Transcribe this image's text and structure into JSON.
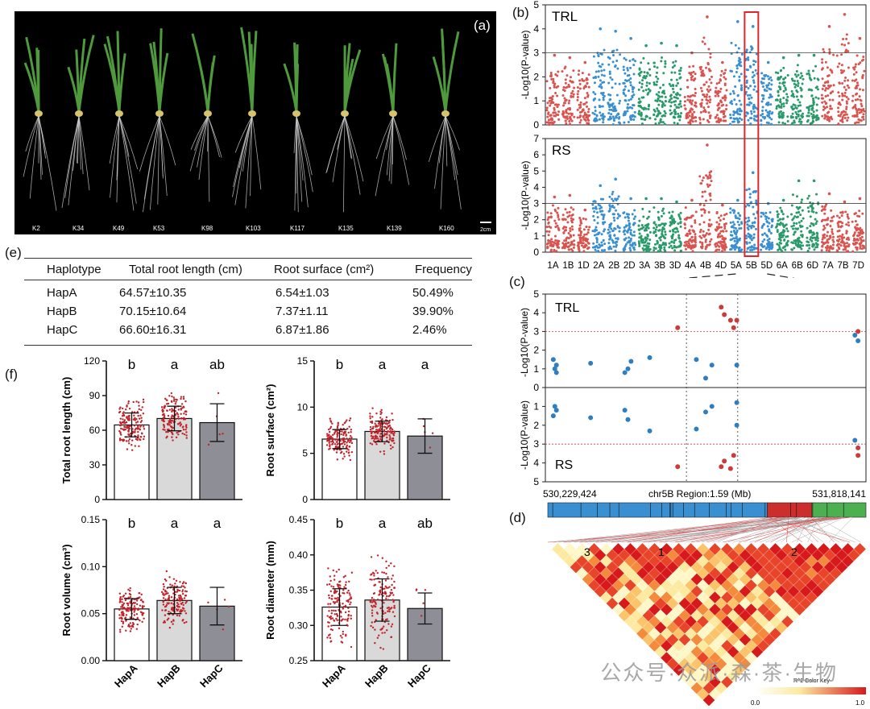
{
  "panels": {
    "a": "(a)",
    "b": "(b)",
    "c": "(c)",
    "d": "(d)",
    "e": "(e)",
    "f": "(f)"
  },
  "photo": {
    "labels": [
      "K2",
      "K34",
      "K49",
      "K53",
      "K98",
      "K103",
      "K117",
      "K135",
      "K139",
      "K160"
    ],
    "scale": "2cm"
  },
  "table": {
    "headers": [
      "Haplotype",
      "Total root length (cm)",
      "Root surface (cm²)",
      "Frequency"
    ],
    "rows": [
      [
        "HapA",
        "64.57±10.35",
        "6.54±1.03",
        "50.49%"
      ],
      [
        "HapB",
        "70.15±10.64",
        "7.37±1.11",
        "39.90%"
      ],
      [
        "HapC",
        "66.60±16.31",
        "6.87±1.86",
        "2.46%"
      ]
    ]
  },
  "watermark": "公众号·众派·森·茶·生物",
  "chart_data": [
    {
      "id": "manhattan",
      "type": "scatter",
      "subplots": [
        {
          "name": "TRL",
          "ylabel": "-Log10(P-value)",
          "ylim": [
            0,
            5
          ],
          "yticks": [
            0,
            1,
            2,
            3,
            4,
            5
          ],
          "threshold": 3.0
        },
        {
          "name": "RS",
          "ylabel": "-Log10(P-value)",
          "ylim": [
            0,
            7
          ],
          "yticks": [
            0,
            1,
            2,
            3,
            4,
            5,
            6,
            7
          ],
          "threshold": 3.0
        }
      ],
      "chromosomes": [
        "1A",
        "1B",
        "1D",
        "2A",
        "2B",
        "2D",
        "3A",
        "3B",
        "3D",
        "4A",
        "4B",
        "4D",
        "5A",
        "5B",
        "5D",
        "6A",
        "6B",
        "6D",
        "7A",
        "7B",
        "7D"
      ],
      "chromosome_colors": [
        "#d9534f",
        "#d9534f",
        "#d9534f",
        "#3a8fd0",
        "#3a8fd0",
        "#3a8fd0",
        "#2a9a6a",
        "#2a9a6a",
        "#2a9a6a",
        "#d9534f",
        "#d9534f",
        "#d9534f",
        "#3a8fd0",
        "#3a8fd0",
        "#3a8fd0",
        "#2a9a6a",
        "#2a9a6a",
        "#2a9a6a",
        "#d9534f",
        "#d9534f",
        "#d9534f"
      ],
      "peak_max_TRL": [
        2.9,
        2.8,
        2.6,
        4.0,
        3.9,
        3.6,
        3.3,
        3.4,
        3.3,
        3.0,
        4.5,
        2.6,
        4.3,
        4.1,
        2.6,
        2.8,
        2.9,
        2.9,
        4.1,
        4.6,
        3.6
      ],
      "peak_max_RS": [
        3.4,
        3.5,
        2.6,
        4.1,
        4.5,
        3.3,
        3.3,
        3.3,
        3.1,
        3.2,
        6.6,
        2.9,
        3.2,
        4.9,
        3.0,
        3.2,
        4.4,
        4.4,
        3.6,
        3.1,
        3.3
      ],
      "highlight_chromosome": "5B"
    },
    {
      "id": "region",
      "type": "scatter",
      "title": "chr5B Region:1.59 (Mb)",
      "x_start_label": "530,229,424",
      "x_end_label": "531,818,141",
      "x_range_bp": [
        530229424,
        531818141
      ],
      "top_label": "TRL",
      "bottom_label": "RS",
      "ylabel": "-Log10(P-value)",
      "yticks_top": [
        0,
        1,
        2,
        3,
        4,
        5
      ],
      "yticks_bottom": [
        0,
        1,
        2,
        3,
        4,
        5
      ],
      "threshold": 3.0,
      "points_top": [
        [
          0.01,
          1.5
        ],
        [
          0.015,
          1.0
        ],
        [
          0.02,
          0.8
        ],
        [
          0.02,
          1.2
        ],
        [
          0.13,
          1.3
        ],
        [
          0.24,
          0.8
        ],
        [
          0.25,
          1.0
        ],
        [
          0.26,
          1.4
        ],
        [
          0.32,
          1.6
        ],
        [
          0.41,
          3.2
        ],
        [
          0.47,
          1.5
        ],
        [
          0.5,
          0.5
        ],
        [
          0.52,
          1.2
        ],
        [
          0.55,
          4.3
        ],
        [
          0.56,
          3.9
        ],
        [
          0.58,
          3.6
        ],
        [
          0.59,
          3.2
        ],
        [
          0.6,
          3.6
        ],
        [
          0.6,
          1.2
        ],
        [
          0.98,
          2.8
        ],
        [
          0.99,
          2.5
        ],
        [
          0.99,
          3.0
        ]
      ],
      "points_bottom": [
        [
          0.01,
          1.5
        ],
        [
          0.015,
          1.0
        ],
        [
          0.02,
          1.2
        ],
        [
          0.13,
          1.6
        ],
        [
          0.24,
          1.2
        ],
        [
          0.25,
          1.7
        ],
        [
          0.32,
          2.3
        ],
        [
          0.41,
          4.2
        ],
        [
          0.47,
          2.2
        ],
        [
          0.5,
          1.3
        ],
        [
          0.52,
          1.0
        ],
        [
          0.55,
          4.2
        ],
        [
          0.56,
          3.9
        ],
        [
          0.58,
          4.3
        ],
        [
          0.59,
          3.6
        ],
        [
          0.6,
          2.0
        ],
        [
          0.6,
          0.8
        ],
        [
          0.98,
          2.8
        ],
        [
          0.99,
          3.2
        ],
        [
          0.99,
          3.6
        ]
      ],
      "dashed_lines_x": [
        0.44,
        0.6
      ]
    },
    {
      "id": "ld",
      "type": "heatmap",
      "blocks": [
        "3",
        "1",
        "2"
      ],
      "colorbar_title": "R^2 Color Key",
      "colorbar_range": [
        "0.0",
        "1.0"
      ],
      "gene_bar_colors": [
        "#3a8fd0",
        "#cc2e2e",
        "#4caf50"
      ]
    },
    {
      "id": "bars",
      "type": "bar",
      "categories": [
        "HapA",
        "HapB",
        "HapC"
      ],
      "bar_colors": [
        "#ffffff",
        "#d9d9d9",
        "#8e8e96"
      ],
      "subplots": [
        {
          "ylabel": "Total root length (cm)",
          "ylim": [
            0,
            120
          ],
          "yticks": [
            "0",
            "30",
            "60",
            "90",
            "120"
          ],
          "values": [
            64.57,
            70.15,
            66.6
          ],
          "sd": [
            10.35,
            10.64,
            16.31
          ],
          "letters": [
            "b",
            "a",
            "ab"
          ]
        },
        {
          "ylabel": "Root surface (cm²)",
          "ylim": [
            0,
            15
          ],
          "yticks": [
            "0",
            "5",
            "10",
            "15"
          ],
          "values": [
            6.54,
            7.37,
            6.87
          ],
          "sd": [
            1.03,
            1.11,
            1.86
          ],
          "letters": [
            "b",
            "a",
            "a"
          ]
        },
        {
          "ylabel": "Root volume (cm³)",
          "ylim": [
            0,
            0.15
          ],
          "yticks": [
            "0.00",
            "0.05",
            "0.10",
            "0.15"
          ],
          "values": [
            0.055,
            0.064,
            0.058
          ],
          "sd": [
            0.011,
            0.014,
            0.02
          ],
          "letters": [
            "b",
            "a",
            "a"
          ]
        },
        {
          "ylabel": "Root diameter (mm)",
          "ylim": [
            0.25,
            0.45
          ],
          "yticks": [
            "0.25",
            "0.30",
            "0.35",
            "0.40",
            "0.45"
          ],
          "values": [
            0.326,
            0.336,
            0.324
          ],
          "sd": [
            0.026,
            0.03,
            0.022
          ],
          "letters": [
            "b",
            "a",
            "ab"
          ]
        }
      ]
    }
  ]
}
